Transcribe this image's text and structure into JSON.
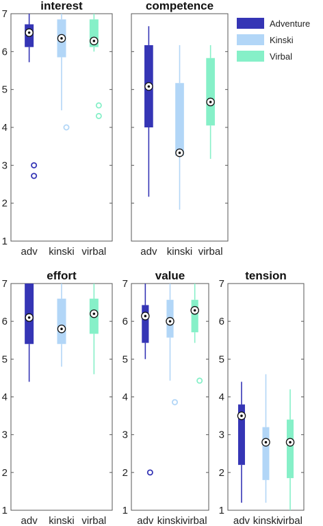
{
  "chart_data": [
    {
      "type": "box",
      "title": "interest",
      "categories": [
        "adv",
        "kinski",
        "virbal"
      ],
      "ylim": [
        1,
        7
      ],
      "yticks": [
        1,
        2,
        3,
        4,
        5,
        6,
        7
      ],
      "show_ytick_labels": true,
      "show_xtick_labels": true,
      "series": [
        {
          "name": "Adventure",
          "min": 5.72,
          "q1": 6.12,
          "median": 6.5,
          "q3": 6.72,
          "max": 7.0,
          "outliers": [
            3.0,
            2.72
          ]
        },
        {
          "name": "Kinski",
          "min": 4.45,
          "q1": 5.85,
          "median": 6.35,
          "q3": 6.85,
          "max": 7.0,
          "outliers": [
            4.0
          ]
        },
        {
          "name": "Virbal",
          "min": 6.0,
          "q1": 6.12,
          "median": 6.28,
          "q3": 6.85,
          "max": 7.0,
          "outliers": [
            4.58,
            4.3
          ]
        }
      ]
    },
    {
      "type": "box",
      "title": "competence",
      "categories": [
        "adv",
        "kinski",
        "virbal"
      ],
      "ylim": [
        1,
        7
      ],
      "yticks": [
        1,
        2,
        3,
        4,
        5,
        6,
        7
      ],
      "show_ytick_labels": false,
      "show_xtick_labels": true,
      "series": [
        {
          "name": "Adventure",
          "min": 2.17,
          "q1": 4.0,
          "median": 5.08,
          "q3": 6.17,
          "max": 6.67,
          "outliers": []
        },
        {
          "name": "Kinski",
          "min": 1.83,
          "q1": 3.25,
          "median": 3.33,
          "q3": 5.17,
          "max": 6.17,
          "outliers": []
        },
        {
          "name": "Virbal",
          "min": 3.17,
          "q1": 4.05,
          "median": 4.67,
          "q3": 5.83,
          "max": 6.17,
          "outliers": []
        }
      ]
    },
    {
      "type": "box",
      "title": "effort",
      "categories": [
        "adv",
        "kinski",
        "virbal"
      ],
      "ylim": [
        1,
        7
      ],
      "yticks": [
        1,
        2,
        3,
        4,
        5,
        6,
        7
      ],
      "show_ytick_labels": true,
      "show_xtick_labels": true,
      "series": [
        {
          "name": "Adventure",
          "min": 4.4,
          "q1": 5.4,
          "median": 6.1,
          "q3": 7.0,
          "max": 7.0,
          "outliers": []
        },
        {
          "name": "Kinski",
          "min": 4.8,
          "q1": 5.4,
          "median": 5.8,
          "q3": 6.6,
          "max": 7.0,
          "outliers": []
        },
        {
          "name": "Virbal",
          "min": 4.6,
          "q1": 5.67,
          "median": 6.2,
          "q3": 6.6,
          "max": 7.0,
          "outliers": []
        }
      ]
    },
    {
      "type": "box",
      "title": "value",
      "categories": [
        "adv",
        "kinski",
        "virbal"
      ],
      "ylim": [
        1,
        7
      ],
      "yticks": [
        1,
        2,
        3,
        4,
        5,
        6,
        7
      ],
      "show_ytick_labels": true,
      "show_xtick_labels": true,
      "series": [
        {
          "name": "Adventure",
          "min": 5.0,
          "q1": 5.43,
          "median": 6.14,
          "q3": 6.43,
          "max": 7.0,
          "outliers": [
            2.0
          ]
        },
        {
          "name": "Kinski",
          "min": 4.43,
          "q1": 5.57,
          "median": 6.0,
          "q3": 6.57,
          "max": 7.0,
          "outliers": [
            3.86
          ]
        },
        {
          "name": "Virbal",
          "min": 5.43,
          "q1": 5.71,
          "median": 6.29,
          "q3": 6.57,
          "max": 7.0,
          "outliers": [
            4.43
          ]
        }
      ]
    },
    {
      "type": "box",
      "title": "tension",
      "categories": [
        "adv",
        "kinski",
        "virbal"
      ],
      "ylim": [
        1,
        7
      ],
      "yticks": [
        1,
        2,
        3,
        4,
        5,
        6,
        7
      ],
      "show_ytick_labels": true,
      "show_xtick_labels": true,
      "series": [
        {
          "name": "Adventure",
          "min": 1.2,
          "q1": 2.2,
          "median": 3.5,
          "q3": 3.8,
          "max": 4.4,
          "outliers": []
        },
        {
          "name": "Kinski",
          "min": 1.2,
          "q1": 1.8,
          "median": 2.8,
          "q3": 3.2,
          "max": 4.6,
          "outliers": []
        },
        {
          "name": "Virbal",
          "min": 1.0,
          "q1": 1.85,
          "median": 2.8,
          "q3": 3.4,
          "max": 4.2,
          "outliers": []
        }
      ]
    }
  ],
  "legend": {
    "placement": "top-right",
    "items": [
      {
        "label": "Adventure",
        "color": "#3535b5"
      },
      {
        "label": "Kinski",
        "color": "#b2d6f7"
      },
      {
        "label": "Virbal",
        "color": "#86f0c8"
      }
    ]
  },
  "colors": {
    "Adventure": "#3535b5",
    "Kinski": "#b2d6f7",
    "Virbal": "#86f0c8"
  }
}
